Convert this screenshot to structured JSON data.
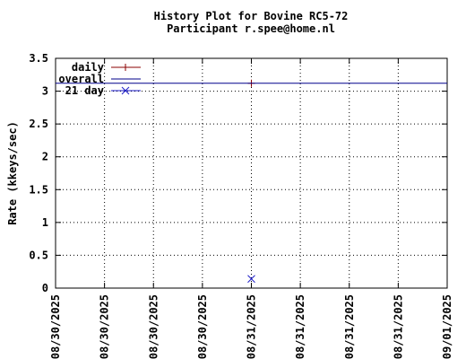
{
  "chart_data": {
    "type": "line",
    "title": "History Plot for Bovine RC5-72",
    "subtitle": "Participant r.spee@home.nl",
    "y_label": "Rate (kkeys/sec)",
    "xlim": [
      0,
      48
    ],
    "xticks": [
      {
        "value": 0,
        "label": "08/30/2025"
      },
      {
        "value": 6,
        "label": "08/30/2025"
      },
      {
        "value": 12,
        "label": "08/30/2025"
      },
      {
        "value": 18,
        "label": "08/30/2025"
      },
      {
        "value": 24,
        "label": "08/31/2025"
      },
      {
        "value": 30,
        "label": "08/31/2025"
      },
      {
        "value": 36,
        "label": "08/31/2025"
      },
      {
        "value": 42,
        "label": "08/31/2025"
      },
      {
        "value": 48,
        "label": "09/01/2025"
      }
    ],
    "ylim": [
      0,
      3.5
    ],
    "yticks": [
      0,
      0.5,
      1,
      1.5,
      2,
      2.5,
      3,
      3.5
    ],
    "grid": true,
    "legend": "top-left",
    "series": [
      {
        "name": "daily",
        "color": "#8b0000",
        "marker": "plus",
        "x": [
          24
        ],
        "values": [
          3.12
        ]
      },
      {
        "name": "overall",
        "color": "#00008b",
        "marker": "line",
        "x": [
          0,
          48
        ],
        "values": [
          3.12,
          3.12
        ]
      },
      {
        "name": "21 day",
        "color": "#1e1ec8",
        "marker": "cross",
        "x": [
          24
        ],
        "values": [
          0.14
        ]
      }
    ]
  }
}
